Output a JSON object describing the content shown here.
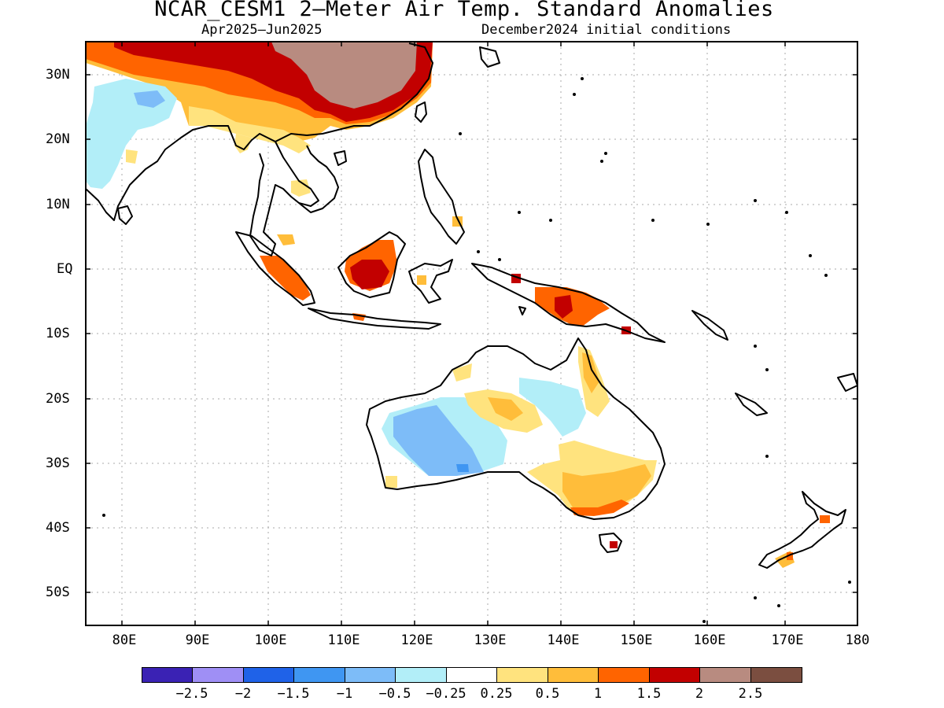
{
  "title": "NCAR_CESM1 2—Meter Air Temp. Standard Anomalies",
  "subtitle_left": "Apr2025—Jun2025",
  "subtitle_right": "December2024 initial conditions",
  "y_labels": [
    "30N",
    "20N",
    "10N",
    "EQ",
    "10S",
    "20S",
    "30S",
    "40S",
    "50S"
  ],
  "x_labels": [
    "80E",
    "90E",
    "100E",
    "110E",
    "120E",
    "130E",
    "140E",
    "150E",
    "160E",
    "170E",
    "180"
  ],
  "colorbar": {
    "colors": [
      "#3a22b4",
      "#9f8ff5",
      "#1f62e8",
      "#3f96f2",
      "#7dbcf8",
      "#b2eef8",
      "#ffffff",
      "#ffe37e",
      "#ffbd3a",
      "#ff6400",
      "#c20000",
      "#b88b80",
      "#7b4e40"
    ],
    "labels": [
      "−2.5",
      "−2",
      "−1.5",
      "−1",
      "−0.5",
      "−0.25",
      "0.25",
      "0.5",
      "1",
      "1.5",
      "2",
      "2.5"
    ]
  }
}
